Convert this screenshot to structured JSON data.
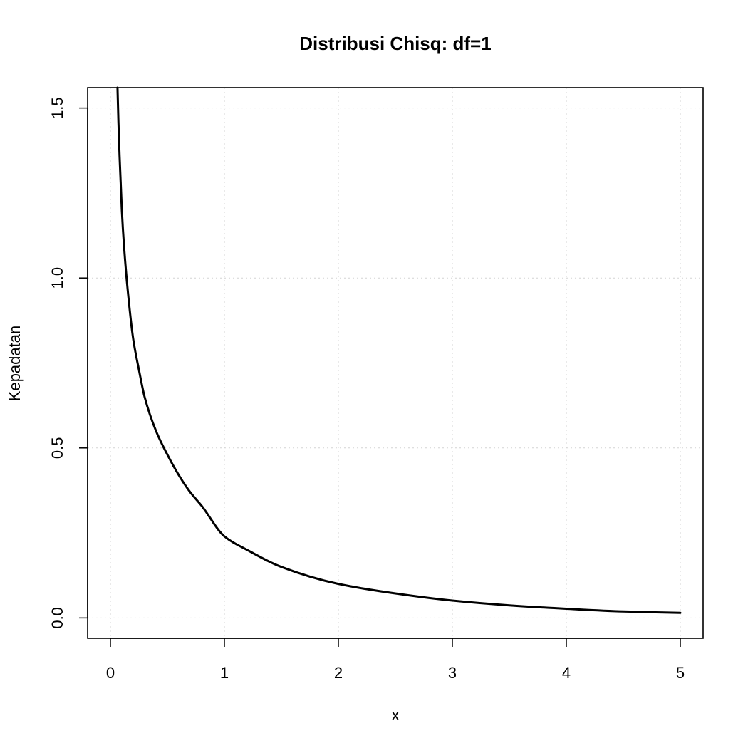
{
  "chart_data": {
    "type": "line",
    "title": "Distribusi Chisq: df=1",
    "xlabel": "x",
    "ylabel": "Kepadatan",
    "xlim": [
      -0.2,
      5.2
    ],
    "ylim": [
      -0.06,
      1.56
    ],
    "xticks": [
      "0",
      "1",
      "2",
      "3",
      "4",
      "5"
    ],
    "yticks": [
      "0.0",
      "0.5",
      "1.0",
      "1.5"
    ],
    "grid": true,
    "legend": "none",
    "series": [
      {
        "color": "#000000",
        "x": [
          0.062,
          0.07,
          0.08,
          0.09,
          0.1,
          0.12,
          0.15,
          0.2,
          0.25,
          0.3,
          0.4,
          0.5,
          0.6,
          0.7,
          0.8,
          1.0,
          1.2,
          1.5,
          2.0,
          2.5,
          3.0,
          3.5,
          4.0,
          4.5,
          5.0
        ],
        "y": [
          1.56,
          1.46,
          1.36,
          1.28,
          1.2,
          1.09,
          0.97,
          0.82,
          0.73,
          0.65,
          0.55,
          0.48,
          0.42,
          0.37,
          0.33,
          0.24,
          0.2,
          0.15,
          0.1,
          0.072,
          0.051,
          0.037,
          0.027,
          0.019,
          0.015
        ]
      }
    ]
  }
}
